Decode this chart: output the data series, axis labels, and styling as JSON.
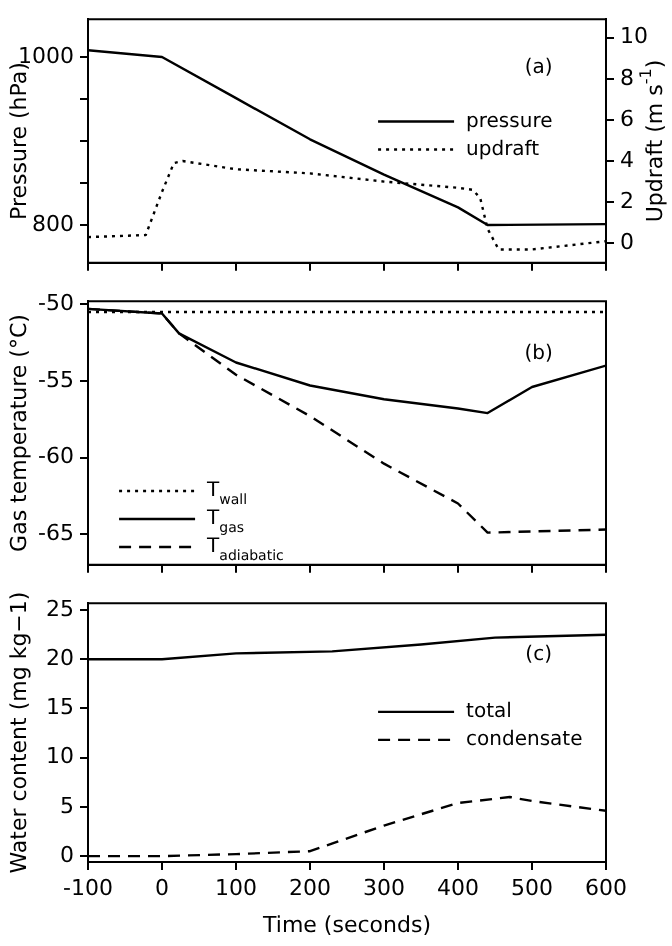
{
  "chart_data": [
    {
      "type": "line",
      "ylabel": "Pressure (hPa)",
      "y2label": "Updraft (m s$^{-1}$)",
      "annotations": [
        "(a)"
      ],
      "legend": "right",
      "grid": false,
      "tick_labels": "y",
      "xlim": [
        -100,
        600
      ],
      "xticks": [
        -100,
        0,
        100,
        200,
        300,
        400,
        500,
        600
      ],
      "ylim": [
        755,
        1045
      ],
      "yticks": [
        800,
        {
          "value": 850,
          "label": null
        },
        {
          "value": 900,
          "label": null
        },
        {
          "value": 950,
          "label": null
        },
        1000
      ],
      "y2lim": [
        -0.95,
        10.9
      ],
      "y2ticks": [
        0,
        2,
        4,
        6,
        8,
        10
      ],
      "series": [
        {
          "name": "pressure",
          "color": "#000000",
          "line_style": "solid",
          "x": [
            -100,
            0,
            100,
            200,
            300,
            400,
            440,
            600
          ],
          "values": [
            1008,
            1000,
            951,
            902,
            860,
            821,
            800,
            801
          ]
        },
        {
          "name": "updraft",
          "color": "#000000",
          "line_style": "dotted",
          "axis": "y2",
          "x": [
            -100,
            -22,
            0,
            16,
            28,
            100,
            200,
            300,
            400,
            420,
            430,
            440,
            455,
            500,
            600
          ],
          "values": [
            0.3,
            0.4,
            2.5,
            3.9,
            4.0,
            3.6,
            3.4,
            3.0,
            2.7,
            2.6,
            2.2,
            0.7,
            -0.3,
            -0.3,
            0.1
          ]
        }
      ]
    },
    {
      "type": "line",
      "ylabel": "Gas temperature (°C)",
      "annotations": [
        "(b)"
      ],
      "legend": "bottom left",
      "grid": false,
      "tick_labels": "y",
      "xlim": [
        -100,
        600
      ],
      "xticks": [
        -100,
        0,
        100,
        200,
        300,
        400,
        500,
        600
      ],
      "ylim": [
        -67,
        -49.8
      ],
      "yticks": [
        -65,
        -60,
        -55,
        -50
      ],
      "series": [
        {
          "name": "T$_{wall}$",
          "color": "#000000",
          "line_style": "dotted",
          "x": [
            -100,
            600
          ],
          "values": [
            -50.5,
            -50.5
          ]
        },
        {
          "name": "T$_{gas}$",
          "color": "#000000",
          "line_style": "solid",
          "x": [
            -100,
            0,
            23,
            100,
            200,
            300,
            400,
            440,
            500,
            600
          ],
          "values": [
            -50.3,
            -50.6,
            -51.9,
            -53.8,
            -55.3,
            -56.2,
            -56.8,
            -57.1,
            -55.4,
            -54.0
          ]
        },
        {
          "name": "T$_{adiabatic}$",
          "color": "#000000",
          "line_style": "dashed",
          "x": [
            -100,
            0,
            23,
            100,
            200,
            300,
            400,
            440,
            600
          ],
          "values": [
            -50.3,
            -50.6,
            -51.9,
            -54.6,
            -57.3,
            -60.4,
            -63.0,
            -64.9,
            -64.7
          ]
        }
      ]
    },
    {
      "type": "line",
      "xlabel": "Time (seconds)",
      "ylabel": "Water content (mg kg−1)",
      "annotations": [
        "(c)"
      ],
      "legend": "right",
      "grid": false,
      "xlim": [
        -100,
        600
      ],
      "xticks": [
        -100,
        0,
        100,
        200,
        300,
        400,
        500,
        600
      ],
      "ylim": [
        -0.6,
        25.7
      ],
      "yticks": [
        0,
        5,
        10,
        15,
        20,
        25
      ],
      "series": [
        {
          "name": "total",
          "color": "#000000",
          "line_style": "solid",
          "x": [
            -100,
            0,
            100,
            230,
            350,
            450,
            600
          ],
          "values": [
            20,
            20,
            20.6,
            20.8,
            21.5,
            22.2,
            22.5
          ]
        },
        {
          "name": "condensate",
          "color": "#000000",
          "line_style": "dashed",
          "x": [
            -100,
            0,
            100,
            200,
            300,
            400,
            470,
            500,
            600
          ],
          "values": [
            0,
            0,
            0.2,
            0.5,
            3.1,
            5.4,
            6.0,
            5.6,
            4.6
          ]
        }
      ]
    }
  ]
}
